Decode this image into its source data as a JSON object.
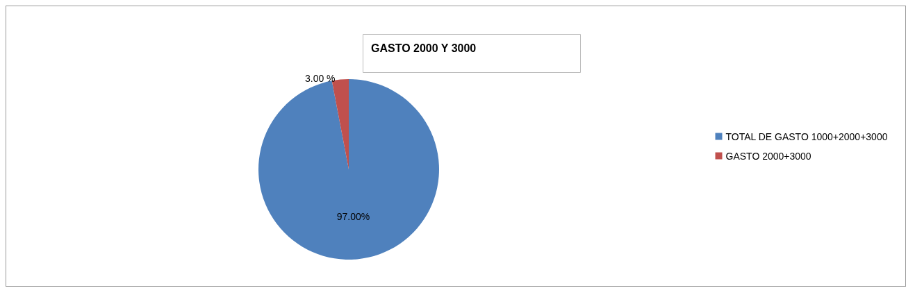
{
  "chart_data": {
    "type": "pie",
    "title": "GASTO 2000 Y 3000",
    "categories": [
      "TOTAL DE GASTO 1000+2000+3000",
      "GASTO 2000+3000"
    ],
    "values": [
      97,
      3
    ],
    "colors": [
      "#4f81bd",
      "#c0504d"
    ],
    "value_labels": [
      "97.00%",
      "3.00 %"
    ],
    "legend": "right"
  }
}
